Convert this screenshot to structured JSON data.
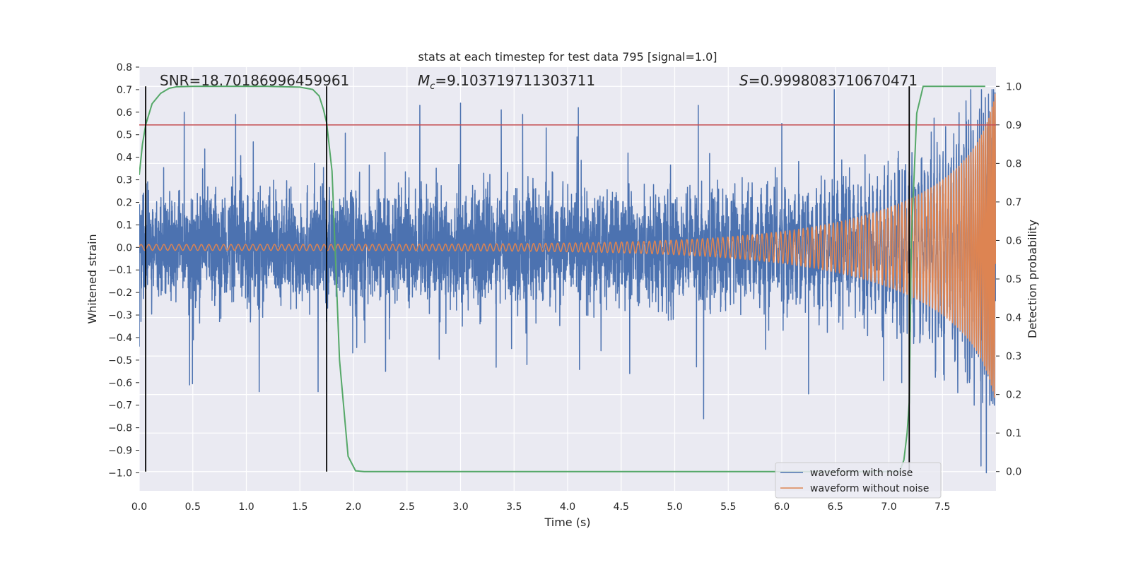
{
  "chart_data": {
    "type": "line",
    "title": "stats at each timestep for test data 795 [signal=1.0]",
    "xlabel": "Time (s)",
    "ylabel": "Whitened strain",
    "y2label": "Detection probability",
    "xlim": [
      0.0,
      8.0
    ],
    "ylim": [
      -1.08,
      0.8
    ],
    "y2lim": [
      -0.05,
      1.05
    ],
    "xticks": [
      "0.0",
      "0.5",
      "1.0",
      "1.5",
      "2.0",
      "2.5",
      "3.0",
      "3.5",
      "4.0",
      "4.5",
      "5.0",
      "5.5",
      "6.0",
      "6.5",
      "7.0",
      "7.5"
    ],
    "yticks": [
      "0.8",
      "0.7",
      "0.6",
      "0.5",
      "0.4",
      "0.3",
      "0.2",
      "0.1",
      "0.0",
      "−0.1",
      "−0.2",
      "−0.3",
      "−0.4",
      "−0.5",
      "−0.6",
      "−0.7",
      "−0.8",
      "−0.9",
      "−1.0"
    ],
    "y2ticks": [
      "1.0",
      "0.9",
      "0.8",
      "0.7",
      "0.6",
      "0.5",
      "0.4",
      "0.3",
      "0.2",
      "0.1",
      "0.0"
    ],
    "grid": true,
    "legend_position": "lower-right",
    "annotations": {
      "snr": "SNR=18.70186996459961",
      "mc_symbol": "M",
      "mc_sub": "c",
      "mc_value": "=9.103719711303711",
      "s_symbol": "S",
      "s_value": "=0.9998083710670471"
    },
    "threshold": {
      "y2": 0.9,
      "color": "#c44e52"
    },
    "vlines": [
      0.06,
      1.75,
      7.19
    ],
    "vline_range_y2": [
      0.0,
      1.0
    ],
    "series": [
      {
        "name": "waveform with noise",
        "color": "#4c72b0",
        "axis": "left",
        "envelope": {
          "noise_std": 0.115,
          "max_abs": 0.7
        },
        "spikes": [
          [
            0.0,
            -0.44
          ],
          [
            0.42,
            0.6
          ],
          [
            0.47,
            -0.61
          ],
          [
            0.9,
            0.59
          ],
          [
            1.12,
            -0.64
          ],
          [
            1.67,
            -0.64
          ],
          [
            2.3,
            -0.55
          ],
          [
            2.62,
            0.63
          ],
          [
            3.0,
            0.64
          ],
          [
            3.38,
            0.61
          ],
          [
            3.58,
            0.59
          ],
          [
            3.62,
            -0.52
          ],
          [
            3.8,
            0.53
          ],
          [
            4.1,
            0.62
          ],
          [
            4.58,
            -0.56
          ],
          [
            5.22,
            0.63
          ],
          [
            5.27,
            -0.76
          ],
          [
            6.0,
            0.55
          ],
          [
            6.25,
            -0.65
          ],
          [
            6.49,
            0.7
          ],
          [
            6.95,
            -0.59
          ],
          [
            7.12,
            -0.6
          ],
          [
            7.72,
            0.65
          ],
          [
            7.86,
            -0.97
          ],
          [
            7.91,
            -1.0
          ],
          [
            7.93,
            0.68
          ]
        ]
      },
      {
        "name": "waveform without noise",
        "color": "#dd8452",
        "axis": "left",
        "chirp": {
          "f0": 14,
          "t_merge": 8.08,
          "a0": 0.013,
          "amp_end": 0.69
        }
      },
      {
        "name": "detection probability",
        "color": "#55a868",
        "axis": "right",
        "x": [
          0.0,
          0.03,
          0.06,
          0.12,
          0.2,
          0.28,
          0.35,
          0.5,
          0.8,
          1.2,
          1.5,
          1.62,
          1.68,
          1.72,
          1.75,
          1.8,
          1.87,
          1.95,
          2.02,
          2.1,
          3.0,
          4.0,
          5.0,
          6.0,
          6.8,
          7.1,
          7.14,
          7.17,
          7.19,
          7.21,
          7.26,
          7.32,
          7.5,
          7.9
        ],
        "y": [
          0.77,
          0.85,
          0.9,
          0.955,
          0.982,
          0.995,
          0.999,
          1.0,
          1.0,
          1.0,
          0.998,
          0.992,
          0.975,
          0.94,
          0.905,
          0.78,
          0.29,
          0.04,
          0.002,
          0.0,
          0.0,
          0.0,
          0.0,
          0.0,
          0.0,
          0.0,
          0.03,
          0.1,
          0.18,
          0.6,
          0.93,
          1.0,
          1.0,
          1.0
        ]
      }
    ]
  }
}
